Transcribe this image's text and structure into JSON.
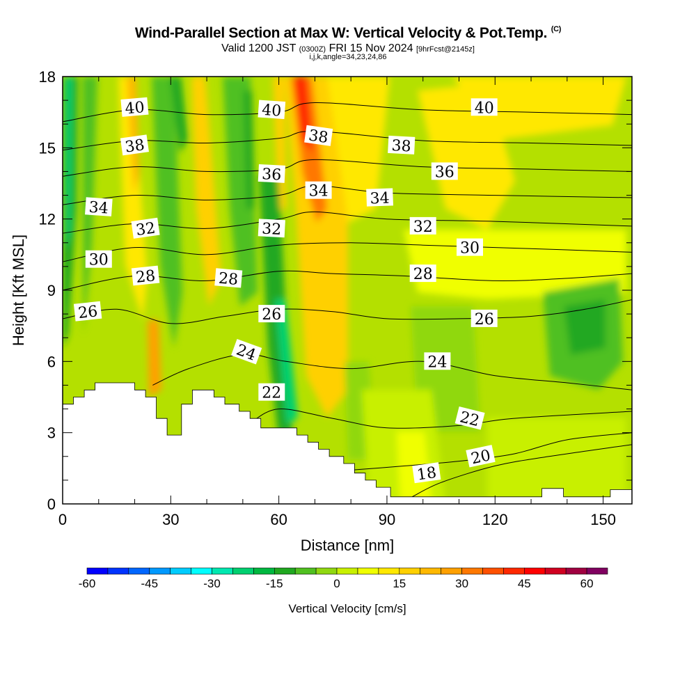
{
  "header": {
    "title_main": "Wind-Parallel Section at Max W: Vertical Velocity & Pot.Temp.",
    "title_mark": "(C)",
    "valid_pre": "Valid 1200 JST",
    "valid_utc": "(0300Z)",
    "valid_date": "FRI 15 Nov 2024",
    "valid_fcst": "[9hrFcst@2145z]",
    "indices": "i,j,k,angle=34,23,24,86"
  },
  "chart_data": {
    "type": "heatmap",
    "xlabel": "Distance [nm]",
    "ylabel": "Height [Kft MSL]",
    "xlim": [
      0,
      158
    ],
    "ylim": [
      0,
      18
    ],
    "x_ticks": [
      0,
      30,
      60,
      90,
      120,
      150
    ],
    "y_ticks": [
      0,
      3,
      6,
      9,
      12,
      15,
      18
    ],
    "colorbar": {
      "label": "Vertical Velocity [cm/s]",
      "tick_labels": [
        -60,
        -45,
        -30,
        -15,
        0,
        15,
        30,
        45,
        60
      ],
      "bins": [
        -60,
        -55,
        -50,
        -45,
        -40,
        -35,
        -30,
        -25,
        -20,
        -15,
        -10,
        -5,
        0,
        5,
        10,
        15,
        20,
        25,
        30,
        35,
        40,
        45,
        50,
        55,
        60,
        65
      ],
      "colors": [
        "#0000ff",
        "#0033ff",
        "#0066ff",
        "#0099ff",
        "#00ccff",
        "#00ffff",
        "#00e8b0",
        "#00d070",
        "#00b840",
        "#20a820",
        "#50c020",
        "#90d810",
        "#c8f000",
        "#f0ff00",
        "#ffe800",
        "#ffd000",
        "#ffb800",
        "#ffa000",
        "#ff7800",
        "#ff5000",
        "#ff2800",
        "#ff0000",
        "#d00020",
        "#a00040",
        "#800060",
        "#600080"
      ]
    },
    "theta_contours": [
      {
        "label": "18",
        "points": [
          [
            97,
            0.3
          ],
          [
            105,
            0.9
          ],
          [
            120,
            1.6
          ],
          [
            135,
            2.0
          ],
          [
            158,
            2.5
          ]
        ]
      },
      {
        "label": "20",
        "points": [
          [
            78,
            1.4
          ],
          [
            95,
            1.6
          ],
          [
            110,
            1.8
          ],
          [
            125,
            2.1
          ],
          [
            140,
            2.7
          ],
          [
            158,
            3.0
          ]
        ]
      },
      {
        "label": "22",
        "points": [
          [
            52,
            3.4
          ],
          [
            60,
            4.0
          ],
          [
            75,
            3.6
          ],
          [
            90,
            3.2
          ],
          [
            110,
            3.3
          ],
          [
            125,
            3.6
          ],
          [
            158,
            3.9
          ]
        ]
      },
      {
        "label": "24",
        "points": [
          [
            25,
            5.0
          ],
          [
            35,
            5.7
          ],
          [
            50,
            6.3
          ],
          [
            62,
            6.0
          ],
          [
            80,
            5.7
          ],
          [
            100,
            6.0
          ],
          [
            120,
            5.4
          ],
          [
            140,
            5.1
          ],
          [
            158,
            4.8
          ]
        ]
      },
      {
        "label": "26",
        "points": [
          [
            0,
            7.8
          ],
          [
            15,
            8.2
          ],
          [
            30,
            7.6
          ],
          [
            45,
            7.9
          ],
          [
            60,
            8.2
          ],
          [
            75,
            8.1
          ],
          [
            90,
            7.8
          ],
          [
            110,
            7.8
          ],
          [
            130,
            7.9
          ],
          [
            145,
            8.2
          ],
          [
            158,
            8.6
          ]
        ]
      },
      {
        "label": "28",
        "points": [
          [
            0,
            9.0
          ],
          [
            20,
            9.6
          ],
          [
            40,
            9.4
          ],
          [
            60,
            9.8
          ],
          [
            75,
            9.7
          ],
          [
            95,
            9.6
          ],
          [
            120,
            9.4
          ],
          [
            140,
            9.5
          ],
          [
            158,
            9.7
          ]
        ]
      },
      {
        "label": "30",
        "points": [
          [
            0,
            10.2
          ],
          [
            20,
            10.8
          ],
          [
            40,
            10.5
          ],
          [
            60,
            10.9
          ],
          [
            80,
            11.0
          ],
          [
            100,
            10.9
          ],
          [
            120,
            10.8
          ],
          [
            140,
            10.7
          ],
          [
            158,
            10.6
          ]
        ]
      },
      {
        "label": "32",
        "points": [
          [
            0,
            11.4
          ],
          [
            20,
            11.8
          ],
          [
            40,
            11.6
          ],
          [
            60,
            12.0
          ],
          [
            70,
            12.3
          ],
          [
            90,
            12.0
          ],
          [
            120,
            11.9
          ],
          [
            158,
            11.7
          ]
        ]
      },
      {
        "label": "34",
        "points": [
          [
            0,
            12.6
          ],
          [
            20,
            13.0
          ],
          [
            40,
            12.8
          ],
          [
            60,
            13.0
          ],
          [
            70,
            13.4
          ],
          [
            90,
            13.1
          ],
          [
            120,
            13.0
          ],
          [
            158,
            12.9
          ]
        ]
      },
      {
        "label": "36",
        "points": [
          [
            0,
            13.8
          ],
          [
            20,
            14.2
          ],
          [
            40,
            14.0
          ],
          [
            60,
            14.1
          ],
          [
            70,
            14.5
          ],
          [
            100,
            14.2
          ],
          [
            130,
            14.1
          ],
          [
            158,
            14.0
          ]
        ]
      },
      {
        "label": "38",
        "points": [
          [
            0,
            14.9
          ],
          [
            20,
            15.3
          ],
          [
            40,
            15.2
          ],
          [
            60,
            15.4
          ],
          [
            70,
            15.7
          ],
          [
            100,
            15.3
          ],
          [
            130,
            15.2
          ],
          [
            158,
            15.1
          ]
        ]
      },
      {
        "label": "40",
        "points": [
          [
            0,
            16.1
          ],
          [
            20,
            16.6
          ],
          [
            40,
            16.4
          ],
          [
            60,
            16.5
          ],
          [
            70,
            16.9
          ],
          [
            100,
            16.6
          ],
          [
            130,
            16.5
          ],
          [
            158,
            16.4
          ]
        ]
      }
    ],
    "theta_labels": [
      {
        "text": "40",
        "x": 20,
        "y": 16.7,
        "rot": -5
      },
      {
        "text": "40",
        "x": 58,
        "y": 16.6,
        "rot": 4
      },
      {
        "text": "40",
        "x": 117,
        "y": 16.7,
        "rot": 0
      },
      {
        "text": "38",
        "x": 20,
        "y": 15.1,
        "rot": -8
      },
      {
        "text": "38",
        "x": 71,
        "y": 15.5,
        "rot": 8
      },
      {
        "text": "38",
        "x": 94,
        "y": 15.1,
        "rot": 3
      },
      {
        "text": "36",
        "x": 58,
        "y": 13.9,
        "rot": 3
      },
      {
        "text": "36",
        "x": 106,
        "y": 14.0,
        "rot": 0
      },
      {
        "text": "34",
        "x": 10,
        "y": 12.5,
        "rot": 4
      },
      {
        "text": "34",
        "x": 71,
        "y": 13.2,
        "rot": 0
      },
      {
        "text": "34",
        "x": 88,
        "y": 12.9,
        "rot": -2
      },
      {
        "text": "32",
        "x": 23,
        "y": 11.6,
        "rot": -8
      },
      {
        "text": "32",
        "x": 58,
        "y": 11.6,
        "rot": 3
      },
      {
        "text": "32",
        "x": 100,
        "y": 11.7,
        "rot": 0
      },
      {
        "text": "30",
        "x": 10,
        "y": 10.3,
        "rot": 0
      },
      {
        "text": "30",
        "x": 113,
        "y": 10.8,
        "rot": 0
      },
      {
        "text": "28",
        "x": 23,
        "y": 9.6,
        "rot": -6
      },
      {
        "text": "28",
        "x": 46,
        "y": 9.5,
        "rot": 5
      },
      {
        "text": "28",
        "x": 100,
        "y": 9.7,
        "rot": 0
      },
      {
        "text": "26",
        "x": 7,
        "y": 8.1,
        "rot": -6
      },
      {
        "text": "26",
        "x": 58,
        "y": 8.0,
        "rot": 0
      },
      {
        "text": "26",
        "x": 117,
        "y": 7.8,
        "rot": 0
      },
      {
        "text": "24",
        "x": 51,
        "y": 6.4,
        "rot": 20
      },
      {
        "text": "24",
        "x": 104,
        "y": 6.0,
        "rot": 0
      },
      {
        "text": "22",
        "x": 58,
        "y": 4.7,
        "rot": 0
      },
      {
        "text": "22",
        "x": 113,
        "y": 3.6,
        "rot": 14
      },
      {
        "text": "20",
        "x": 116,
        "y": 2.0,
        "rot": -12
      },
      {
        "text": "18",
        "x": 101,
        "y": 1.3,
        "rot": -8
      }
    ],
    "terrain_profile": [
      [
        0,
        4.2
      ],
      [
        3,
        4.2
      ],
      [
        3,
        4.5
      ],
      [
        6,
        4.5
      ],
      [
        6,
        4.8
      ],
      [
        9,
        4.8
      ],
      [
        9,
        5.1
      ],
      [
        20,
        5.1
      ],
      [
        20,
        4.8
      ],
      [
        23,
        4.8
      ],
      [
        23,
        4.5
      ],
      [
        26,
        4.5
      ],
      [
        26,
        3.6
      ],
      [
        29,
        3.6
      ],
      [
        29,
        2.9
      ],
      [
        33,
        2.9
      ],
      [
        33,
        4.2
      ],
      [
        36,
        4.2
      ],
      [
        36,
        4.8
      ],
      [
        42,
        4.8
      ],
      [
        42,
        4.5
      ],
      [
        45,
        4.5
      ],
      [
        45,
        4.2
      ],
      [
        49,
        4.2
      ],
      [
        49,
        3.9
      ],
      [
        52,
        3.9
      ],
      [
        52,
        3.6
      ],
      [
        55,
        3.6
      ],
      [
        55,
        3.2
      ],
      [
        65,
        3.2
      ],
      [
        65,
        2.9
      ],
      [
        68,
        2.9
      ],
      [
        68,
        2.6
      ],
      [
        71,
        2.6
      ],
      [
        71,
        2.3
      ],
      [
        74,
        2.3
      ],
      [
        74,
        2.0
      ],
      [
        78,
        2.0
      ],
      [
        78,
        1.7
      ],
      [
        81,
        1.7
      ],
      [
        81,
        1.3
      ],
      [
        84,
        1.3
      ],
      [
        84,
        1.0
      ],
      [
        87,
        1.0
      ],
      [
        87,
        0.7
      ],
      [
        91,
        0.7
      ],
      [
        91,
        0.3
      ],
      [
        133,
        0.3
      ],
      [
        133,
        0.65
      ],
      [
        139,
        0.65
      ],
      [
        139,
        0.3
      ],
      [
        152,
        0.3
      ],
      [
        152,
        0.6
      ],
      [
        158,
        0.6
      ]
    ]
  }
}
